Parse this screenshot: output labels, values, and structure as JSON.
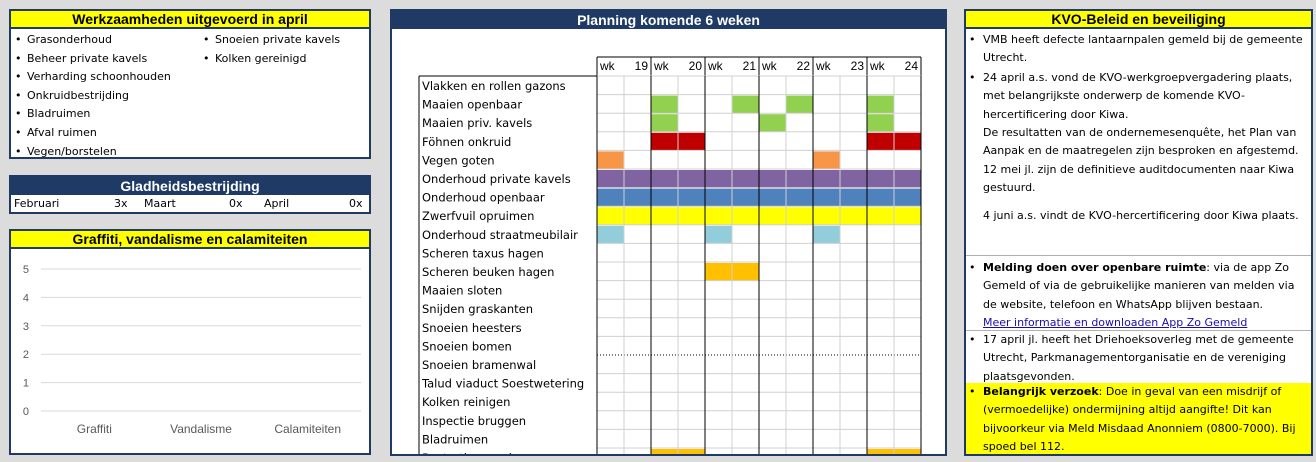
{
  "werk": {
    "title": "Werkzaamheden uitgevoerd in april",
    "col1": [
      "Grasonderhoud",
      "Beheer private kavels",
      "Verharding schoonhouden",
      "Onkruidbestrijding",
      "Bladruimen",
      "Afval ruimen",
      "Vegen/borstelen"
    ],
    "col2": [
      "Snoeien private kavels",
      "Kolken gereinigd"
    ]
  },
  "glad": {
    "title": "Gladheidsbestrijding",
    "months": [
      {
        "name": "Februari",
        "value": "3x"
      },
      {
        "name": "Maart",
        "value": "0x"
      },
      {
        "name": "April",
        "value": "0x"
      }
    ]
  },
  "graf": {
    "title": "Graffiti, vandalisme en calamiteiten"
  },
  "chart_data": {
    "type": "bar",
    "categories": [
      "Graffiti",
      "Vandalisme",
      "Calamiteiten"
    ],
    "values": [
      0,
      0,
      0
    ],
    "yticks": [
      "0",
      "1",
      "2",
      "3",
      "4",
      "5"
    ],
    "ylim": [
      0,
      5
    ],
    "grid": true
  },
  "plan": {
    "title": "Planning komende 6 weken",
    "weeks": [
      {
        "wk": "wk",
        "num": "19"
      },
      {
        "wk": "wk",
        "num": "20"
      },
      {
        "wk": "wk",
        "num": "21"
      },
      {
        "wk": "wk",
        "num": "22"
      },
      {
        "wk": "wk",
        "num": "23"
      },
      {
        "wk": "wk",
        "num": "24"
      }
    ],
    "colors": {
      "green": "#92d050",
      "red": "#c00000",
      "orange_light": "#f79646",
      "purple": "#8064a2",
      "blue": "#4f81bd",
      "yellow": "#ffff00",
      "light_blue": "#92cddc",
      "orange": "#ffc000"
    },
    "rows": [
      {
        "label": "Vlakken en rollen gazons",
        "cells": []
      },
      {
        "label": "Maaien openbaar",
        "cells": [
          {
            "s": 2,
            "e": 3,
            "c": "green"
          },
          {
            "s": 5,
            "e": 6,
            "c": "green"
          },
          {
            "s": 7,
            "e": 8,
            "c": "green"
          },
          {
            "s": 10,
            "e": 11,
            "c": "green"
          }
        ]
      },
      {
        "label": "Maaien priv. kavels",
        "cells": [
          {
            "s": 2,
            "e": 3,
            "c": "green"
          },
          {
            "s": 6,
            "e": 7,
            "c": "green"
          },
          {
            "s": 10,
            "e": 11,
            "c": "green"
          }
        ]
      },
      {
        "label": "Föhnen onkruid",
        "cells": [
          {
            "s": 2,
            "e": 4,
            "c": "red"
          },
          {
            "s": 10,
            "e": 12,
            "c": "red"
          }
        ]
      },
      {
        "label": "Vegen goten",
        "cells": [
          {
            "s": 0,
            "e": 1,
            "c": "orange_light"
          },
          {
            "s": 8,
            "e": 9,
            "c": "orange_light"
          }
        ]
      },
      {
        "label": "Onderhoud private kavels",
        "cells": [
          {
            "s": 0,
            "e": 12,
            "c": "purple"
          }
        ]
      },
      {
        "label": "Onderhoud openbaar",
        "cells": [
          {
            "s": 0,
            "e": 12,
            "c": "blue"
          }
        ]
      },
      {
        "label": "Zwerfvuil opruimen",
        "cells": [
          {
            "s": 0,
            "e": 12,
            "c": "yellow"
          }
        ]
      },
      {
        "label": "Onderhoud straatmeubilair",
        "cells": [
          {
            "s": 0,
            "e": 1,
            "c": "light_blue"
          },
          {
            "s": 4,
            "e": 5,
            "c": "light_blue"
          },
          {
            "s": 8,
            "e": 9,
            "c": "light_blue"
          }
        ]
      },
      {
        "label": "Scheren taxus hagen",
        "cells": []
      },
      {
        "label": "Scheren beuken hagen",
        "cells": [
          {
            "s": 4,
            "e": 6,
            "c": "orange"
          }
        ]
      },
      {
        "label": "Maaien sloten",
        "cells": []
      },
      {
        "label": "Snijden graskanten",
        "cells": []
      },
      {
        "label": "Snoeien heesters",
        "cells": []
      },
      {
        "label": "Snoeien bomen",
        "cells": []
      },
      {
        "label": "Snoeien bramenwal",
        "cells": []
      },
      {
        "label": "Talud viaduct Soestwetering",
        "cells": []
      },
      {
        "label": "Kolken reinigen",
        "cells": []
      },
      {
        "label": "Inspectie bruggen",
        "cells": []
      },
      {
        "label": "Bladruimen",
        "cells": []
      },
      {
        "label": "Bestratingswerk",
        "cells": [
          {
            "s": 2,
            "e": 4,
            "c": "orange"
          },
          {
            "s": 10,
            "e": 12,
            "c": "orange"
          }
        ]
      }
    ]
  },
  "kvo": {
    "title": "KVO-Beleid en beveiliging",
    "b1": "VMB heeft defecte lantaarnpalen gemeld bij de gemeente Utrecht.",
    "b2": "24 april a.s. vond de KVO-werkgroepvergadering plaats, met belangrijkste onderwerp de komende KVO-hercertificering door Kiwa.",
    "p1": "De resultatten van de ondernemesenquête, het Plan van Aanpak en de maatregelen zijn besproken en afgestemd.",
    "p2": "12 mei jl. zijn de definitieve auditdocumenten naar Kiwa gestuurd.",
    "p3": "4 juni a.s. vindt de KVO-hercertificering door Kiwa plaats.",
    "b3_bold": "Melding doen over openbare ruimte",
    "b3_rest": ": via de app Zo Gemeld of via de gebruikelijke manieren van melden via de website, telefoon en WhatsApp blijven bestaan.",
    "link": "Meer informatie en downloaden App Zo Gemeld",
    "b4": "17 april jl. heeft het Driehoeksoverleg met de gemeente Utrecht, Parkmanagementorganisatie en de vereniging plaatsgevonden.",
    "b5_bold": "Belangrijk verzoek",
    "b5_rest": ": Doe in geval van een misdrijf of (vermoedelijke) ondermijning altijd aangifte! Dit kan bijvoorkeur via Meld Misdaad Anonniem (0800-7000). Bij spoed bel 112.",
    "bullet": "•"
  }
}
